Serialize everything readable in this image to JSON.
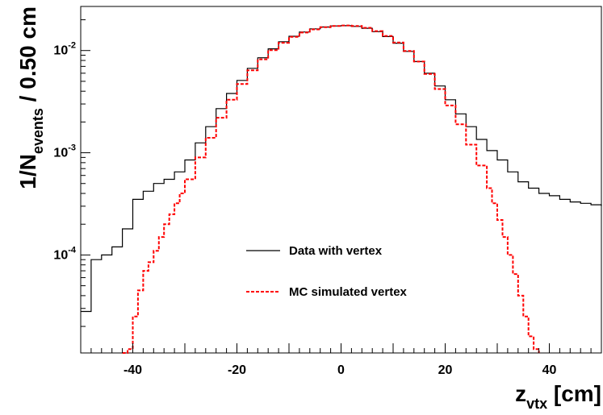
{
  "chart_data": {
    "type": "line",
    "x_axis": {
      "range": [
        -50,
        50
      ],
      "ticks": [
        -40,
        -20,
        0,
        20,
        40
      ],
      "tick_labels": [
        "-40",
        "-20",
        "0",
        "20",
        "40"
      ],
      "label_main": "z",
      "label_sub": "vtx",
      "label_unit": " [cm]"
    },
    "y_axis": {
      "scale": "log",
      "range": [
        1.1e-05,
        0.027
      ],
      "ticks": [
        0.0001,
        0.001,
        0.01
      ],
      "tick_labels": [
        {
          "base": "10",
          "exp": "-4"
        },
        {
          "base": "10",
          "exp": "-3"
        },
        {
          "base": "10",
          "exp": "-2"
        }
      ],
      "label_main": "1/N",
      "label_sub": "events",
      "label_unit": " / 0.50 cm"
    },
    "grid": false,
    "legend": {
      "placement": "center-bottom"
    },
    "series": [
      {
        "name": "Data with vertex",
        "color": "#000000",
        "style": "solid-step",
        "x": [
          -50,
          -48,
          -46,
          -44,
          -42,
          -40,
          -38,
          -36,
          -34,
          -32,
          -30,
          -28,
          -26,
          -24,
          -22,
          -20,
          -18,
          -16,
          -14,
          -12,
          -10,
          -8,
          -6,
          -4,
          -2,
          0,
          2,
          4,
          6,
          8,
          10,
          12,
          14,
          16,
          18,
          20,
          22,
          24,
          26,
          28,
          30,
          32,
          34,
          36,
          38,
          40,
          42,
          44,
          46,
          48,
          50
        ],
        "y": [
          2.8e-05,
          9e-05,
          0.0001,
          0.00012,
          0.00018,
          0.00035,
          0.00042,
          0.0005,
          0.00055,
          0.00065,
          0.00085,
          0.00125,
          0.0018,
          0.0027,
          0.0038,
          0.0051,
          0.0067,
          0.0085,
          0.0104,
          0.0122,
          0.0138,
          0.0152,
          0.0163,
          0.017,
          0.0174,
          0.0175,
          0.0172,
          0.0165,
          0.0153,
          0.0137,
          0.0118,
          0.0098,
          0.0078,
          0.006,
          0.0045,
          0.0033,
          0.0024,
          0.0018,
          0.00135,
          0.00105,
          0.00085,
          0.00065,
          0.00052,
          0.00045,
          0.0004,
          0.00038,
          0.00035,
          0.00033,
          0.00032,
          0.00031,
          0.0003
        ]
      },
      {
        "name": "MC simulated vertex",
        "color": "#ff0000",
        "style": "dashed-step",
        "x": [
          -42,
          -41,
          -40,
          -39,
          -38,
          -37,
          -36,
          -35,
          -34,
          -33,
          -32,
          -31,
          -30,
          -28,
          -26,
          -24,
          -22,
          -20,
          -18,
          -16,
          -14,
          -12,
          -10,
          -8,
          -6,
          -4,
          -2,
          0,
          2,
          4,
          6,
          8,
          10,
          12,
          14,
          16,
          18,
          20,
          22,
          24,
          26,
          28,
          29,
          30,
          31,
          32,
          33,
          34,
          35,
          36,
          37,
          38
        ],
        "y": [
          1.1e-05,
          1.2e-05,
          2.5e-05,
          4.5e-05,
          7e-05,
          8.5e-05,
          0.00011,
          0.00015,
          0.0002,
          0.00025,
          0.00032,
          0.0004,
          0.00055,
          0.0009,
          0.0014,
          0.0022,
          0.0033,
          0.0047,
          0.0064,
          0.0082,
          0.0101,
          0.0119,
          0.0136,
          0.015,
          0.0161,
          0.0169,
          0.0174,
          0.0176,
          0.0174,
          0.0167,
          0.0155,
          0.0139,
          0.012,
          0.0099,
          0.0078,
          0.0059,
          0.0042,
          0.0029,
          0.0019,
          0.0012,
          0.00075,
          0.00045,
          0.00032,
          0.00022,
          0.00015,
          0.0001,
          6.5e-05,
          4e-05,
          2.5e-05,
          1.6e-05,
          1.2e-05,
          1.1e-05
        ]
      }
    ]
  }
}
